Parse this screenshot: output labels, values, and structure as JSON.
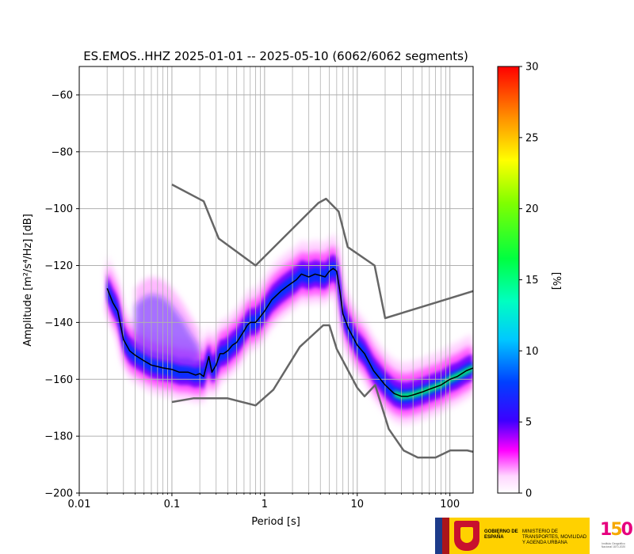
{
  "chart_data": {
    "type": "heatmap",
    "title": "ES.EMOS..HHZ   2025-01-01 -- 2025-05-10  (6062/6062 segments)",
    "xlabel": "Period [s]",
    "ylabel": "Amplitude [m²/s⁴/Hz] [dB]",
    "x_scale": "log",
    "xlim": [
      0.01,
      178
    ],
    "ylim": [
      -200,
      -50
    ],
    "x_ticks": [
      0.01,
      0.1,
      1,
      10,
      100
    ],
    "x_tick_labels": [
      "0.01",
      "0.1",
      "1",
      "10",
      "100"
    ],
    "y_ticks": [
      -200,
      -180,
      -160,
      -140,
      -120,
      -100,
      -80,
      -60
    ],
    "y_tick_labels": [
      "−200",
      "−180",
      "−160",
      "−140",
      "−120",
      "−100",
      "−80",
      "−60"
    ],
    "grid": true,
    "colorbar": {
      "label": "[%]",
      "min": 0,
      "max": 30,
      "ticks": [
        0,
        5,
        10,
        15,
        20,
        25,
        30
      ],
      "tick_labels": [
        "0",
        "5",
        "10",
        "15",
        "20",
        "25",
        "30"
      ]
    },
    "noise_model_high": {
      "x": [
        0.1,
        0.22,
        0.32,
        0.8,
        3.8,
        4.6,
        6.3,
        7.9,
        15.4,
        20,
        354.8
      ],
      "y": [
        -91.5,
        -97.4,
        -110.5,
        -120,
        -98,
        -96.5,
        -101,
        -113.5,
        -120,
        -138.5,
        -126
      ]
    },
    "noise_model_low": {
      "x": [
        0.1,
        0.17,
        0.4,
        0.8,
        1.24,
        2.4,
        4.3,
        5.0,
        6.0,
        10,
        12,
        15.6,
        21.9,
        31.6,
        45,
        70,
        101,
        154,
        178
      ],
      "y": [
        -168,
        -166.7,
        -166.7,
        -169.2,
        -163.7,
        -148.6,
        -141,
        -141,
        -149.3,
        -163,
        -166,
        -162,
        -177.5,
        -185,
        -187.5,
        -187.5,
        -185,
        -185,
        -185.5
      ]
    },
    "mean_curve": {
      "x": [
        0.02,
        0.023,
        0.026,
        0.03,
        0.035,
        0.04,
        0.05,
        0.06,
        0.07,
        0.08,
        0.1,
        0.12,
        0.15,
        0.18,
        0.2,
        0.22,
        0.25,
        0.27,
        0.3,
        0.33,
        0.36,
        0.4,
        0.45,
        0.5,
        0.6,
        0.65,
        0.7,
        0.8,
        0.9,
        1.0,
        1.2,
        1.5,
        1.8,
        2.2,
        2.5,
        3.0,
        3.5,
        4.0,
        4.5,
        5.0,
        5.5,
        6.0,
        6.5,
        7.0,
        8.0,
        10,
        12,
        15,
        20,
        25,
        30,
        35,
        40,
        50,
        60,
        80,
        100,
        120,
        150,
        178
      ],
      "y": [
        -128,
        -133,
        -136,
        -146,
        -150,
        -151.5,
        -153.5,
        -155,
        -155.5,
        -156,
        -156.5,
        -157.5,
        -157.5,
        -158.5,
        -158,
        -159,
        -152,
        -157.5,
        -155,
        -151,
        -151,
        -150,
        -148,
        -147,
        -143,
        -141,
        -140,
        -140,
        -138,
        -136,
        -132,
        -129,
        -127,
        -125,
        -123,
        -124,
        -123,
        -123.5,
        -124,
        -122,
        -121,
        -122,
        -129,
        -137,
        -142,
        -148,
        -151,
        -157,
        -162,
        -165,
        -166,
        -166,
        -165.5,
        -164.5,
        -163.5,
        -162,
        -160,
        -159,
        -157,
        -156
      ]
    }
  },
  "footer": {
    "gobierno": "GOBIERNO DE ESPAÑA",
    "ministerio": "MINISTERIO DE TRANSPORTES, MOVILIDAD Y AGENDA URBANA",
    "ign_number": "150",
    "ign_subtitle": "Instituto Geográfico Nacional 1870-2020"
  },
  "colors": {
    "curve": "#000000",
    "noise_model": "#666666",
    "grid": "#b0b0b0",
    "gov_yellow": "#ffd100"
  }
}
